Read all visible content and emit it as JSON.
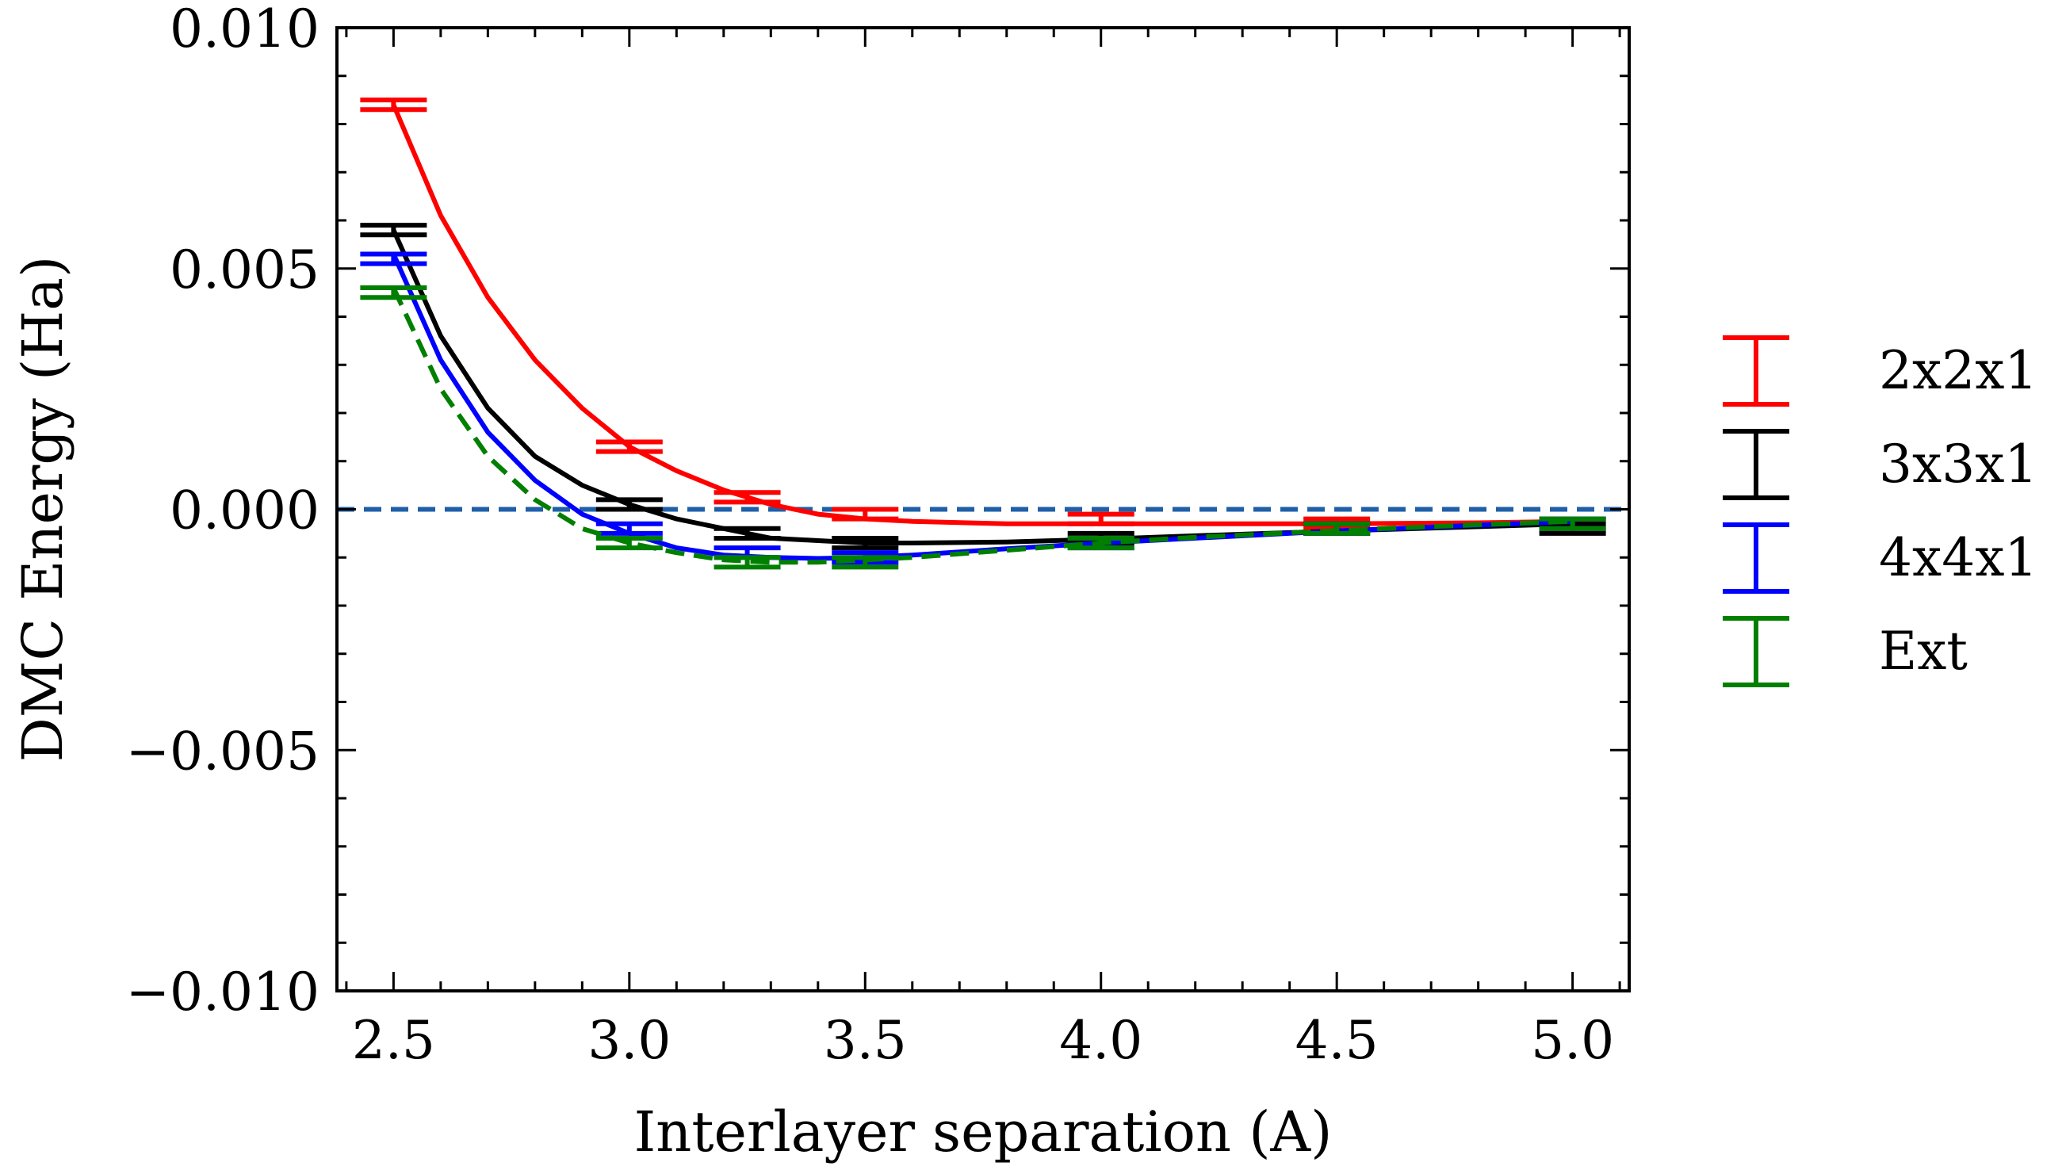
{
  "chart_data": {
    "type": "line",
    "title": "",
    "xlabel": "Interlayer separation (A)",
    "ylabel": "DMC Energy (Ha)",
    "xlim": [
      2.38,
      5.12
    ],
    "ylim": [
      -0.01,
      0.01
    ],
    "x_ticks": [
      2.5,
      3.0,
      3.5,
      4.0,
      4.5,
      5.0
    ],
    "x_tick_labels": [
      "2.5",
      "3.0",
      "3.5",
      "4.0",
      "4.5",
      "5.0"
    ],
    "y_ticks": [
      -0.01,
      -0.005,
      0.0,
      0.005,
      0.01
    ],
    "y_tick_labels": [
      "−0.010",
      "−0.005",
      "0.000",
      "0.005",
      "0.010"
    ],
    "grid": false,
    "legend_position": "right-outside",
    "reference_line": {
      "y": 0.0,
      "color": "#1f5fa8",
      "style": "dashed"
    },
    "series": [
      {
        "name": "2x2x1",
        "color": "#ff0000",
        "fit_style": "solid",
        "points": [
          {
            "x": 2.5,
            "y": 0.0084,
            "err": 0.0001
          },
          {
            "x": 3.0,
            "y": 0.0013,
            "err": 0.0001
          },
          {
            "x": 3.25,
            "y": 0.00025,
            "err": 0.0001
          },
          {
            "x": 3.5,
            "y": -0.0001,
            "err": 0.0001
          },
          {
            "x": 4.0,
            "y": -0.0002,
            "err": 0.0001
          },
          {
            "x": 4.5,
            "y": -0.0003,
            "err": 0.0001
          },
          {
            "x": 5.0,
            "y": -0.0003,
            "err": 0.0001
          }
        ],
        "fit_x": [
          2.5,
          2.6,
          2.7,
          2.8,
          2.9,
          3.0,
          3.1,
          3.2,
          3.3,
          3.4,
          3.5,
          3.6,
          3.8,
          4.0,
          4.2,
          4.5,
          4.8,
          5.0
        ],
        "fit_y": [
          0.0084,
          0.0061,
          0.0044,
          0.0031,
          0.0021,
          0.0013,
          0.0008,
          0.0004,
          0.0001,
          -0.0001,
          -0.0002,
          -0.00025,
          -0.0003,
          -0.0003,
          -0.0003,
          -0.0003,
          -0.00028,
          -0.00025
        ]
      },
      {
        "name": "3x3x1",
        "color": "#000000",
        "fit_style": "solid",
        "points": [
          {
            "x": 2.5,
            "y": 0.0058,
            "err": 0.0001
          },
          {
            "x": 3.0,
            "y": 0.0001,
            "err": 0.0001
          },
          {
            "x": 3.25,
            "y": -0.0005,
            "err": 0.0001
          },
          {
            "x": 3.5,
            "y": -0.0007,
            "err": 0.0001
          },
          {
            "x": 4.0,
            "y": -0.0006,
            "err": 0.0001
          },
          {
            "x": 4.5,
            "y": -0.0004,
            "err": 0.0001
          },
          {
            "x": 5.0,
            "y": -0.0004,
            "err": 0.0001
          }
        ],
        "fit_x": [
          2.5,
          2.6,
          2.7,
          2.8,
          2.9,
          3.0,
          3.1,
          3.2,
          3.3,
          3.4,
          3.5,
          3.6,
          3.8,
          4.0,
          4.2,
          4.5,
          4.8,
          5.0
        ],
        "fit_y": [
          0.0058,
          0.0036,
          0.0021,
          0.0011,
          0.0005,
          0.0001,
          -0.0002,
          -0.0004,
          -0.0006,
          -0.00065,
          -0.0007,
          -0.0007,
          -0.00068,
          -0.00062,
          -0.00055,
          -0.00045,
          -0.00036,
          -0.0003
        ]
      },
      {
        "name": "4x4x1",
        "color": "#0000ff",
        "fit_style": "solid",
        "points": [
          {
            "x": 2.5,
            "y": 0.0052,
            "err": 0.0001
          },
          {
            "x": 3.0,
            "y": -0.0004,
            "err": 0.0001
          },
          {
            "x": 3.25,
            "y": -0.0009,
            "err": 0.0001
          },
          {
            "x": 3.5,
            "y": -0.001,
            "err": 0.0001
          },
          {
            "x": 4.0,
            "y": -0.0007,
            "err": 0.0001
          },
          {
            "x": 4.5,
            "y": -0.0004,
            "err": 0.0001
          },
          {
            "x": 5.0,
            "y": -0.0003,
            "err": 0.0001
          }
        ],
        "fit_x": [
          2.5,
          2.6,
          2.7,
          2.8,
          2.9,
          3.0,
          3.1,
          3.2,
          3.3,
          3.4,
          3.5,
          3.6,
          3.8,
          4.0,
          4.2,
          4.5,
          4.8,
          5.0
        ],
        "fit_y": [
          0.0053,
          0.0031,
          0.0016,
          0.0006,
          -0.0001,
          -0.0005,
          -0.0008,
          -0.00095,
          -0.001,
          -0.00102,
          -0.001,
          -0.00095,
          -0.00082,
          -0.0007,
          -0.0006,
          -0.00045,
          -0.00033,
          -0.00025
        ]
      },
      {
        "name": "Ext",
        "color": "#007f00",
        "fit_style": "dashed",
        "points": [
          {
            "x": 2.5,
            "y": 0.0045,
            "err": 0.0001
          },
          {
            "x": 3.0,
            "y": -0.0007,
            "err": 0.0001
          },
          {
            "x": 3.25,
            "y": -0.0011,
            "err": 0.0001
          },
          {
            "x": 3.5,
            "y": -0.0011,
            "err": 0.0001
          },
          {
            "x": 4.0,
            "y": -0.0007,
            "err": 0.0001
          },
          {
            "x": 4.5,
            "y": -0.0004,
            "err": 0.0001
          },
          {
            "x": 5.0,
            "y": -0.0003,
            "err": 0.0001
          }
        ],
        "fit_x": [
          2.5,
          2.6,
          2.7,
          2.8,
          2.9,
          3.0,
          3.1,
          3.2,
          3.3,
          3.4,
          3.5,
          3.6,
          3.8,
          4.0,
          4.2,
          4.5,
          4.8,
          5.0
        ],
        "fit_y": [
          0.0046,
          0.0025,
          0.0011,
          0.0002,
          -0.0004,
          -0.0007,
          -0.0009,
          -0.00105,
          -0.0011,
          -0.0011,
          -0.00105,
          -0.001,
          -0.00085,
          -0.0007,
          -0.00058,
          -0.00044,
          -0.00032,
          -0.00025
        ]
      }
    ]
  }
}
